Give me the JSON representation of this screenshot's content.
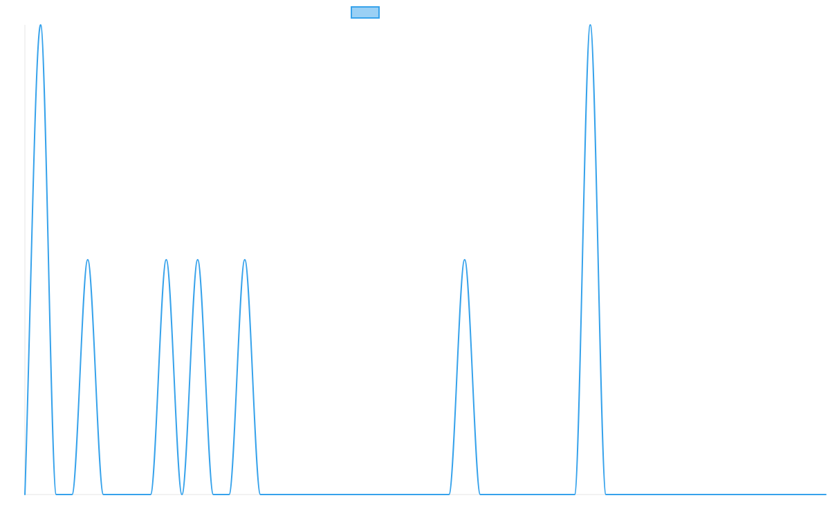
{
  "chart_data": {
    "type": "line",
    "title": "",
    "xlabel": "",
    "ylabel": "",
    "legend": {
      "position": "top-center",
      "entries": [
        {
          "label": ""
        }
      ]
    },
    "grid": false,
    "xlim": [
      0,
      51
    ],
    "ylim": [
      0,
      2
    ],
    "x": [
      0,
      1,
      2,
      3,
      4,
      5,
      6,
      7,
      8,
      9,
      10,
      11,
      12,
      13,
      14,
      15,
      16,
      17,
      18,
      19,
      20,
      21,
      22,
      23,
      24,
      25,
      26,
      27,
      28,
      29,
      30,
      31,
      32,
      33,
      34,
      35,
      36,
      37,
      38,
      39,
      40,
      41,
      42,
      43,
      44,
      45,
      46,
      47,
      48,
      49,
      50,
      51
    ],
    "series": [
      {
        "values": [
          0,
          2,
          0,
          0,
          1,
          0,
          0,
          0,
          0,
          1,
          0,
          1,
          0,
          0,
          1,
          0,
          0,
          0,
          0,
          0,
          0,
          0,
          0,
          0,
          0,
          0,
          0,
          0,
          1,
          0,
          0,
          0,
          0,
          0,
          0,
          0,
          2,
          0,
          0,
          0,
          0,
          0,
          0,
          0,
          0,
          0,
          0,
          0,
          0,
          0,
          0,
          0
        ],
        "color": "#36a2eb",
        "fill": "#9ad0f5"
      }
    ]
  }
}
